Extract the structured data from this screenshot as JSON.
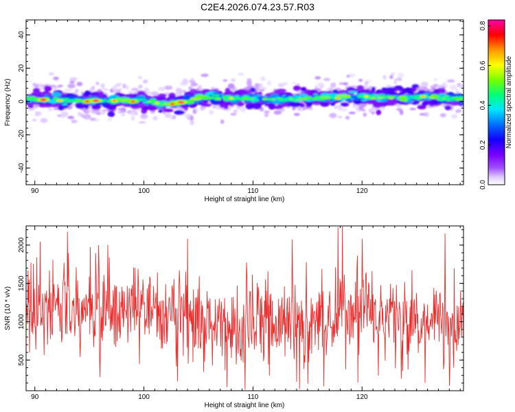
{
  "title": "C2E4.2026.074.23.57.R03",
  "colors": {
    "snr_line": "#ee2b2b",
    "colormap": [
      "#ffffff",
      "#c8a8ff",
      "#8800ff",
      "#0000ff",
      "#00ffff",
      "#00ff44",
      "#ffff00",
      "#ff0000",
      "#ff00aa"
    ]
  },
  "chart_data": [
    {
      "type": "heatmap",
      "name": "spectrogram",
      "xlabel": "Height of straight line (km)",
      "ylabel": "Frequency (Hz)",
      "xlim": [
        89.2,
        129.3
      ],
      "ylim": [
        -50,
        49
      ],
      "xticks": [
        90,
        100,
        110,
        120
      ],
      "yticks": [
        -40,
        -20,
        0,
        20,
        40
      ],
      "xtick_labels": [
        "90",
        "100",
        "110",
        "120"
      ],
      "ytick_labels": [
        "-40",
        "-20",
        "0",
        "20",
        "40"
      ],
      "band_center": [
        [
          89.5,
          1.5
        ],
        [
          92,
          1.0
        ],
        [
          95,
          0.5
        ],
        [
          98,
          0.8
        ],
        [
          100,
          0.0
        ],
        [
          102,
          -1.5
        ],
        [
          104,
          0.0
        ],
        [
          105,
          2.5
        ],
        [
          108,
          2.0
        ],
        [
          110,
          1.5
        ],
        [
          112,
          1.0
        ],
        [
          115,
          2.0
        ],
        [
          118,
          2.5
        ],
        [
          120,
          3.0
        ],
        [
          122,
          2.5
        ],
        [
          125,
          2.5
        ],
        [
          129,
          2.0
        ]
      ],
      "hotspots": [
        {
          "x": 90.8,
          "y": 1.0,
          "amp": 0.85
        },
        {
          "x": 92.3,
          "y": 0.5,
          "amp": 0.7
        },
        {
          "x": 94.8,
          "y": 0.0,
          "amp": 0.8
        },
        {
          "x": 95.6,
          "y": 0.5,
          "amp": 0.85
        },
        {
          "x": 97.3,
          "y": 0.5,
          "amp": 0.75
        },
        {
          "x": 99.0,
          "y": 0.0,
          "amp": 0.8
        },
        {
          "x": 101.2,
          "y": -1.0,
          "amp": 0.65
        },
        {
          "x": 102.6,
          "y": -1.5,
          "amp": 0.8
        },
        {
          "x": 103.4,
          "y": -0.5,
          "amp": 0.85
        },
        {
          "x": 108.0,
          "y": 2.0,
          "amp": 0.65
        },
        {
          "x": 113.5,
          "y": 1.5,
          "amp": 0.55
        },
        {
          "x": 117.8,
          "y": 2.0,
          "amp": 0.7
        },
        {
          "x": 120.4,
          "y": 3.0,
          "amp": 0.65
        },
        {
          "x": 125.6,
          "y": 3.0,
          "amp": 0.7
        },
        {
          "x": 127.5,
          "y": 2.0,
          "amp": 0.55
        }
      ],
      "colorbar": {
        "label": "Normalized spectral amplitude",
        "range": [
          0,
          0.83
        ],
        "ticks": [
          0.0,
          0.2,
          0.4,
          0.6,
          0.8
        ],
        "tick_labels": [
          "0.0",
          "0.2",
          "0.4",
          "0.6",
          "0.8"
        ]
      }
    },
    {
      "type": "line",
      "name": "snr",
      "xlabel": "Height of straight line (km)",
      "ylabel": "SNR (10 * v/v)",
      "xlim": [
        89.2,
        129.3
      ],
      "ylim": [
        100,
        2250
      ],
      "xticks": [
        90,
        100,
        110,
        120
      ],
      "yticks": [
        500,
        1000,
        1500,
        2000
      ],
      "xtick_labels": [
        "90",
        "100",
        "110",
        "120"
      ],
      "ytick_labels": [
        "500",
        "1000",
        "1500",
        "2000"
      ],
      "series": [
        {
          "name": "SNR",
          "trend": [
            [
              89.2,
              1200
            ],
            [
              95,
              1180
            ],
            [
              100,
              1150
            ],
            [
              104,
              1150
            ],
            [
              104.8,
              1000
            ],
            [
              110,
              950
            ],
            [
              114,
              980
            ],
            [
              118,
              1100
            ],
            [
              121,
              1050
            ],
            [
              125,
              950
            ],
            [
              129.3,
              1000
            ]
          ],
          "noise": 380,
          "n_points": 900,
          "peaks": [
            {
              "x": 90.5,
              "y": 2040
            },
            {
              "x": 93.0,
              "y": 2170
            },
            {
              "x": 95.1,
              "y": 1970
            },
            {
              "x": 96.7,
              "y": 2000
            },
            {
              "x": 104.0,
              "y": 2080
            },
            {
              "x": 113.6,
              "y": 2070
            },
            {
              "x": 117.8,
              "y": 2230
            },
            {
              "x": 118.2,
              "y": 2240
            },
            {
              "x": 120.0,
              "y": 2080
            },
            {
              "x": 127.6,
              "y": 2150
            }
          ],
          "troughs": [
            {
              "x": 89.5,
              "y": 600
            },
            {
              "x": 96.0,
              "y": 280
            },
            {
              "x": 103.0,
              "y": 420
            },
            {
              "x": 107.6,
              "y": 150
            },
            {
              "x": 111.5,
              "y": 300
            },
            {
              "x": 114.0,
              "y": 220
            },
            {
              "x": 116.5,
              "y": 160
            },
            {
              "x": 119.6,
              "y": 210
            },
            {
              "x": 121.5,
              "y": 300
            },
            {
              "x": 124.2,
              "y": 380
            },
            {
              "x": 128.0,
              "y": 170
            }
          ]
        }
      ]
    }
  ]
}
